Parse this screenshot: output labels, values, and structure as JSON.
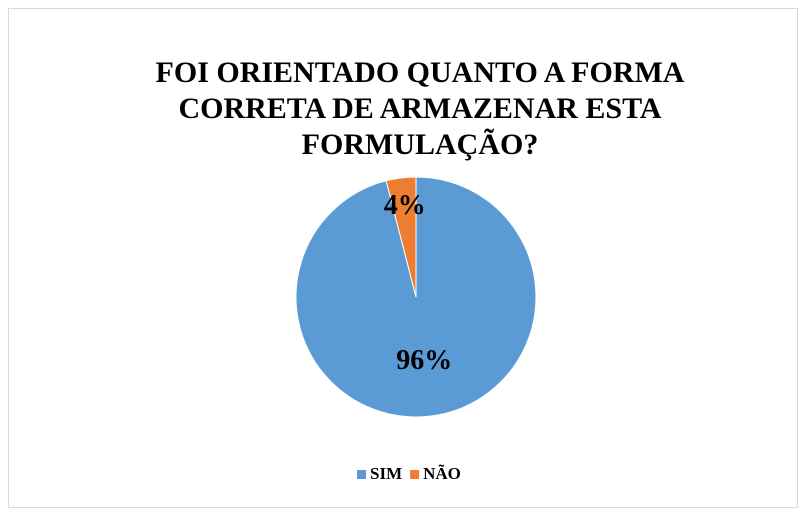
{
  "chart_data": {
    "type": "pie",
    "title": "FOI ORIENTADO QUANTO A FORMA CORRETA DE ARMAZENAR ESTA FORMULAÇÃO?",
    "categories": [
      "SIM",
      "NÃO"
    ],
    "values": [
      96,
      4
    ],
    "value_labels": [
      "96%",
      "4%"
    ],
    "colors": [
      "#5b9bd5",
      "#ed7d31"
    ],
    "legend": "bottom"
  }
}
